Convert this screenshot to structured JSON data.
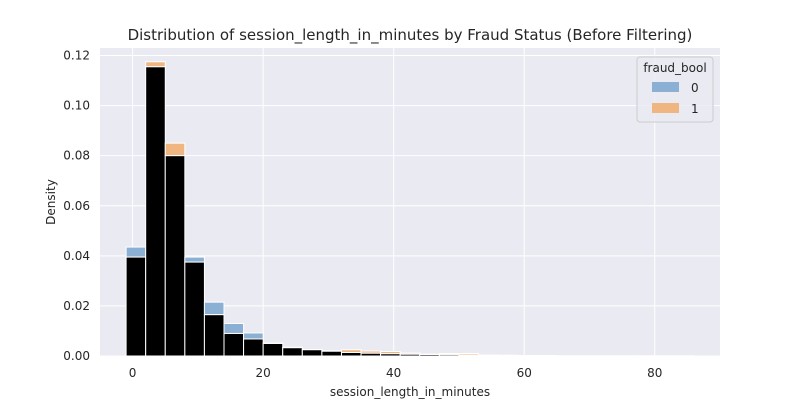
{
  "chart_data": {
    "type": "histogram",
    "title": "Distribution of session_length_in_minutes by Fraud Status (Before Filtering)",
    "xlabel": "session_length_in_minutes",
    "ylabel": "Density",
    "xlim": [
      -5,
      90
    ],
    "ylim": [
      0,
      0.123
    ],
    "x_ticks": [
      0,
      20,
      40,
      60,
      80
    ],
    "x_tick_labels": [
      "0",
      "20",
      "40",
      "60",
      "80"
    ],
    "y_ticks": [
      0.0,
      0.02,
      0.04,
      0.06,
      0.08,
      0.1,
      0.12
    ],
    "y_tick_labels": [
      "0.00",
      "0.02",
      "0.04",
      "0.06",
      "0.08",
      "0.10",
      "0.12"
    ],
    "grid": true,
    "legend": {
      "title": "fraud_bool",
      "placement": "top-right"
    },
    "bin_edges": [
      -1,
      2,
      5,
      8,
      11,
      14,
      17,
      20,
      23,
      26,
      29,
      32,
      35,
      38,
      41,
      44,
      47,
      50,
      53,
      56,
      59,
      62,
      65,
      68,
      71,
      74,
      77,
      80,
      83,
      86
    ],
    "series": [
      {
        "name": "0",
        "color": "#7aa6cf",
        "values": [
          0.0435,
          0.1155,
          0.08,
          0.0395,
          0.0215,
          0.013,
          0.0092,
          0.0052,
          0.0035,
          0.0026,
          0.0019,
          0.0014,
          0.0011,
          0.0009,
          0.0007,
          0.0006,
          0.0005,
          0.0004,
          0.0003,
          0.0003,
          0.0002,
          0.0002,
          0.0001,
          0.0001,
          0.0001,
          0.0001,
          0.0001,
          0.0001,
          0.0001
        ]
      },
      {
        "name": "1",
        "color": "#f0ad6e",
        "values": [
          0.0395,
          0.1175,
          0.085,
          0.0375,
          0.0165,
          0.009,
          0.0068,
          0.005,
          0.0033,
          0.0025,
          0.0021,
          0.0025,
          0.002,
          0.0018,
          0.0012,
          0.0008,
          0.001,
          0.001,
          0.0004,
          0.0003,
          0.0002,
          0.0001,
          0.0001,
          0.0,
          0.0,
          0.0,
          0.0,
          0.0,
          0.0
        ]
      }
    ]
  }
}
